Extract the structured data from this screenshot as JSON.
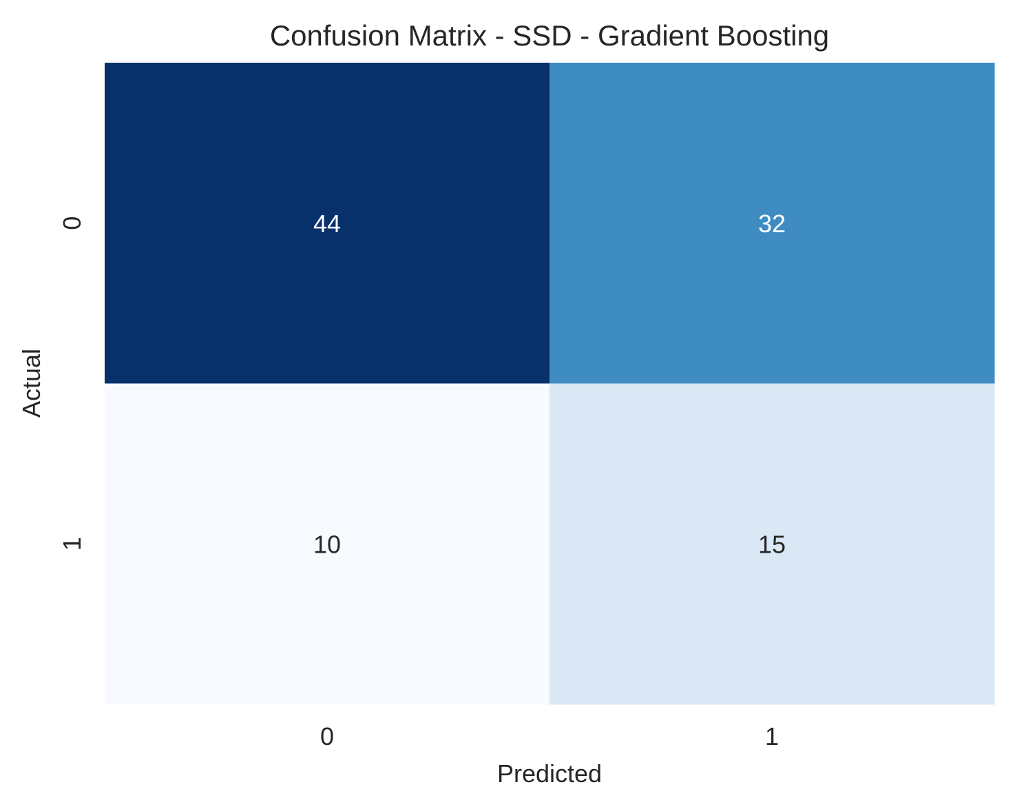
{
  "chart_data": {
    "type": "heatmap",
    "title": "Confusion Matrix - SSD - Gradient Boosting",
    "xlabel": "Predicted",
    "ylabel": "Actual",
    "x_categories": [
      "0",
      "1"
    ],
    "y_categories": [
      "0",
      "1"
    ],
    "values": [
      [
        44,
        32
      ],
      [
        10,
        15
      ]
    ],
    "colormap": "Blues",
    "colorbar": false,
    "grid": false,
    "colors": {
      "44": "#08306b",
      "32": "#3e8cc2",
      "10": "#f7fbff",
      "15": "#dae8f5",
      "text_dark": "#262626",
      "text_light": "#ffffff"
    }
  }
}
